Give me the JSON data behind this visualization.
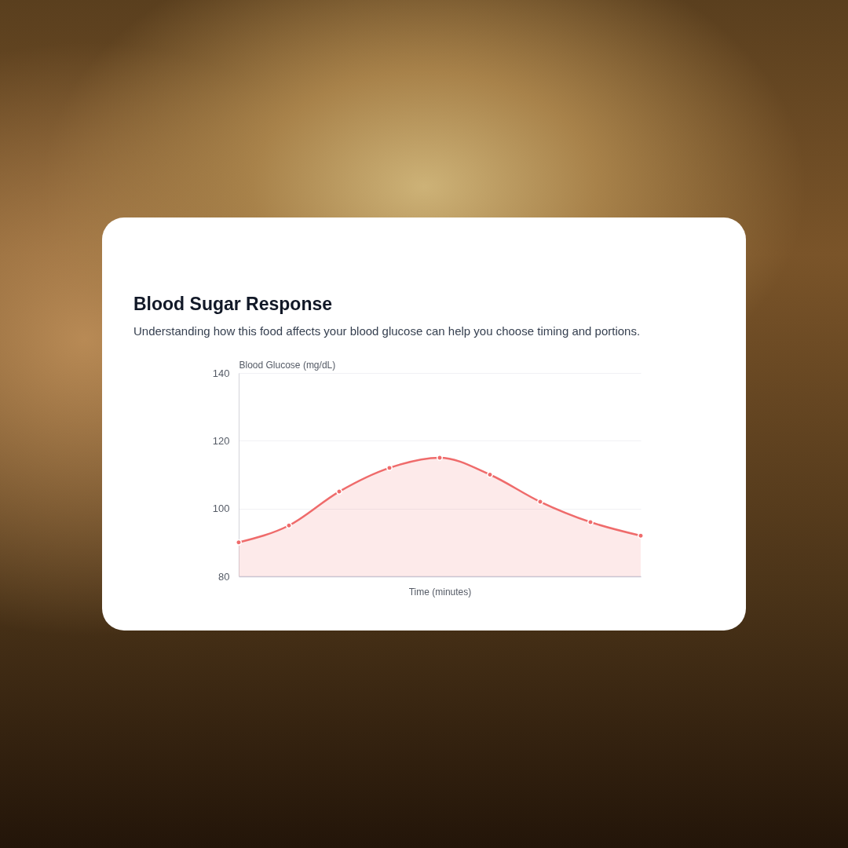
{
  "chart_data": {
    "type": "area",
    "title": "Blood Sugar Response",
    "subtitle": "Understanding how this food affects your blood glucose can help you choose timing and portions.",
    "xlabel": "Time (minutes)",
    "ylabel": "Blood Glucose (mg/dL)",
    "categories": [
      null,
      null,
      null,
      null,
      null,
      null,
      null,
      null,
      null
    ],
    "series": [
      {
        "color": "#ef6b6b",
        "values": [
          90,
          95,
          105,
          112,
          115,
          110,
          102,
          96,
          92
        ]
      }
    ],
    "ylim": [
      80,
      140
    ],
    "yticks": [
      80,
      100,
      120,
      140
    ],
    "grid": "y",
    "marker": "circle",
    "line_style": "solid",
    "tick_labels": "y"
  }
}
